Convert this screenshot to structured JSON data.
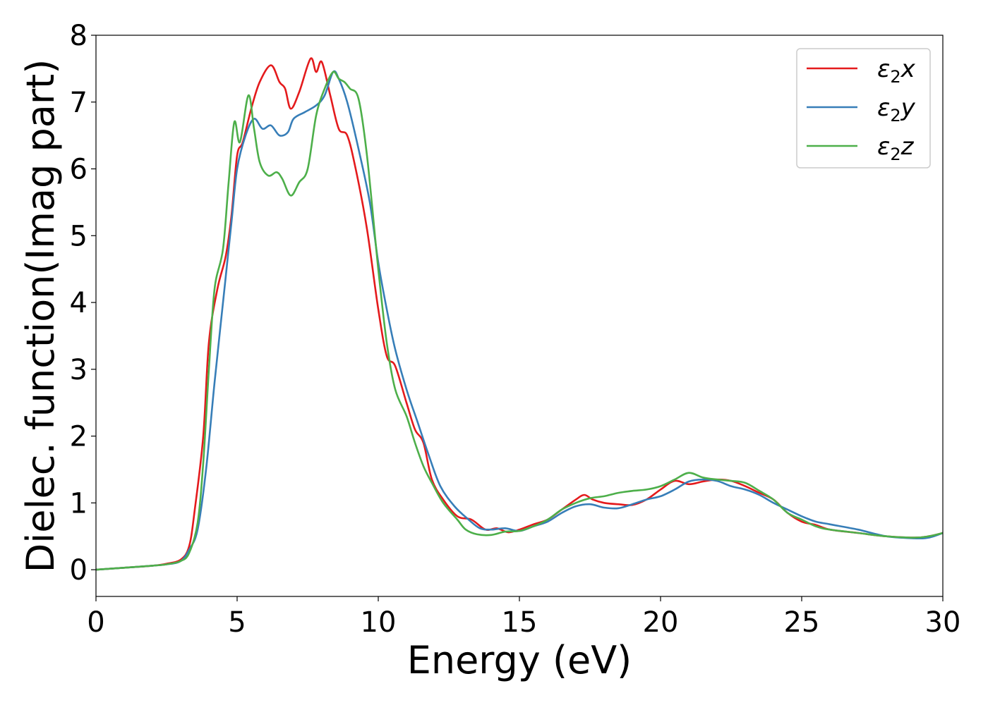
{
  "chart_data": {
    "type": "line",
    "title": "",
    "xlabel": "Energy (eV)",
    "ylabel": "Dielec. function(Imag part)",
    "xlim": [
      0,
      30
    ],
    "ylim": [
      -0.4,
      8
    ],
    "xticks": [
      0,
      5,
      10,
      15,
      20,
      25,
      30
    ],
    "yticks": [
      0,
      1,
      2,
      3,
      4,
      5,
      6,
      7,
      8
    ],
    "grid": false,
    "legend_position": "top-right",
    "series": [
      {
        "name": "ε2x",
        "legend_base": "ε",
        "legend_sub": "2",
        "legend_suffix": "x",
        "color": "#e41a1c",
        "x": [
          0,
          1,
          2,
          2.5,
          3,
          3.3,
          3.5,
          3.8,
          4,
          4.3,
          4.6,
          4.8,
          5,
          5.2,
          5.5,
          5.8,
          6.2,
          6.5,
          6.7,
          6.9,
          7.2,
          7.6,
          7.8,
          8,
          8.3,
          8.6,
          8.9,
          9.2,
          9.6,
          10,
          10.3,
          10.6,
          11,
          11.3,
          11.6,
          11.9,
          12.3,
          12.8,
          13.3,
          13.8,
          14.2,
          14.6,
          15,
          15.5,
          16,
          16.5,
          17,
          17.3,
          17.6,
          18,
          18.5,
          19,
          19.5,
          20,
          20.5,
          21,
          21.5,
          22,
          22.5,
          23,
          23.5,
          24,
          24.5,
          25,
          25.5,
          26,
          27,
          28,
          29,
          29.5,
          30
        ],
        "y": [
          0,
          0.03,
          0.06,
          0.09,
          0.15,
          0.35,
          0.9,
          2.0,
          3.4,
          4.2,
          4.7,
          5.3,
          6.2,
          6.4,
          6.9,
          7.3,
          7.55,
          7.3,
          7.2,
          6.9,
          7.15,
          7.65,
          7.45,
          7.6,
          7.1,
          6.6,
          6.5,
          6.0,
          5.1,
          3.9,
          3.2,
          3.05,
          2.5,
          2.1,
          1.9,
          1.35,
          1.05,
          0.8,
          0.75,
          0.6,
          0.62,
          0.56,
          0.6,
          0.68,
          0.75,
          0.9,
          1.05,
          1.12,
          1.05,
          1.0,
          0.98,
          0.97,
          1.05,
          1.2,
          1.33,
          1.28,
          1.32,
          1.35,
          1.33,
          1.25,
          1.15,
          1.05,
          0.85,
          0.72,
          0.67,
          0.6,
          0.55,
          0.5,
          0.48,
          0.5,
          0.55
        ]
      },
      {
        "name": "ε2y",
        "legend_base": "ε",
        "legend_sub": "2",
        "legend_suffix": "y",
        "color": "#377eb8",
        "x": [
          0,
          1,
          2,
          2.5,
          3,
          3.3,
          3.6,
          3.9,
          4.2,
          4.5,
          4.8,
          5,
          5.3,
          5.6,
          5.9,
          6.2,
          6.5,
          6.8,
          7,
          7.4,
          7.8,
          8.1,
          8.4,
          8.6,
          8.9,
          9.3,
          9.7,
          10,
          10.3,
          10.6,
          11,
          11.4,
          11.8,
          12.2,
          12.7,
          13.2,
          13.6,
          14,
          14.5,
          15,
          15.5,
          16,
          16.5,
          17,
          17.5,
          18,
          18.5,
          19,
          19.5,
          20,
          20.5,
          21,
          21.5,
          22,
          22.5,
          23,
          23.5,
          24,
          24.5,
          25,
          25.5,
          26,
          27,
          28,
          29,
          29.5,
          30
        ],
        "y": [
          0,
          0.03,
          0.06,
          0.08,
          0.13,
          0.3,
          0.6,
          1.5,
          2.8,
          4.0,
          5.2,
          6.0,
          6.5,
          6.75,
          6.6,
          6.65,
          6.5,
          6.55,
          6.75,
          6.85,
          6.95,
          7.1,
          7.45,
          7.35,
          7.0,
          6.3,
          5.5,
          4.6,
          3.9,
          3.3,
          2.7,
          2.2,
          1.7,
          1.25,
          0.95,
          0.75,
          0.62,
          0.6,
          0.62,
          0.58,
          0.65,
          0.72,
          0.85,
          0.95,
          0.98,
          0.93,
          0.92,
          0.98,
          1.05,
          1.1,
          1.2,
          1.32,
          1.35,
          1.33,
          1.25,
          1.2,
          1.12,
          1.0,
          0.9,
          0.8,
          0.72,
          0.68,
          0.6,
          0.5,
          0.47,
          0.48,
          0.55
        ]
      },
      {
        "name": "ε2z",
        "legend_base": "ε",
        "legend_sub": "2",
        "legend_suffix": "z",
        "color": "#4daf4a",
        "x": [
          0,
          1,
          2,
          2.5,
          3,
          3.3,
          3.6,
          3.8,
          4,
          4.2,
          4.5,
          4.7,
          4.9,
          5.1,
          5.4,
          5.6,
          5.8,
          6.1,
          6.4,
          6.6,
          6.9,
          7.2,
          7.5,
          7.8,
          8.1,
          8.4,
          8.6,
          8.8,
          9,
          9.3,
          9.6,
          10,
          10.3,
          10.6,
          11,
          11.3,
          11.6,
          11.9,
          12.3,
          12.8,
          13.1,
          13.5,
          14,
          14.5,
          15,
          15.5,
          16,
          16.5,
          17,
          17.5,
          18,
          18.5,
          19,
          19.5,
          20,
          20.5,
          21,
          21.5,
          22,
          22.5,
          23,
          23.5,
          24,
          24.5,
          25,
          25.5,
          26,
          27,
          28,
          29,
          29.5,
          30
        ],
        "y": [
          0,
          0.03,
          0.06,
          0.08,
          0.13,
          0.25,
          0.7,
          1.6,
          3.0,
          4.2,
          4.8,
          5.8,
          6.7,
          6.4,
          7.1,
          6.6,
          6.1,
          5.9,
          5.95,
          5.85,
          5.6,
          5.8,
          6.0,
          6.8,
          7.2,
          7.45,
          7.35,
          7.3,
          7.2,
          7.05,
          6.2,
          4.5,
          3.4,
          2.7,
          2.3,
          1.9,
          1.55,
          1.3,
          1.0,
          0.75,
          0.6,
          0.53,
          0.52,
          0.57,
          0.58,
          0.65,
          0.75,
          0.9,
          1.0,
          1.07,
          1.1,
          1.15,
          1.18,
          1.2,
          1.25,
          1.35,
          1.45,
          1.38,
          1.35,
          1.33,
          1.3,
          1.18,
          1.05,
          0.85,
          0.75,
          0.65,
          0.6,
          0.55,
          0.5,
          0.48,
          0.5,
          0.55
        ]
      }
    ]
  }
}
